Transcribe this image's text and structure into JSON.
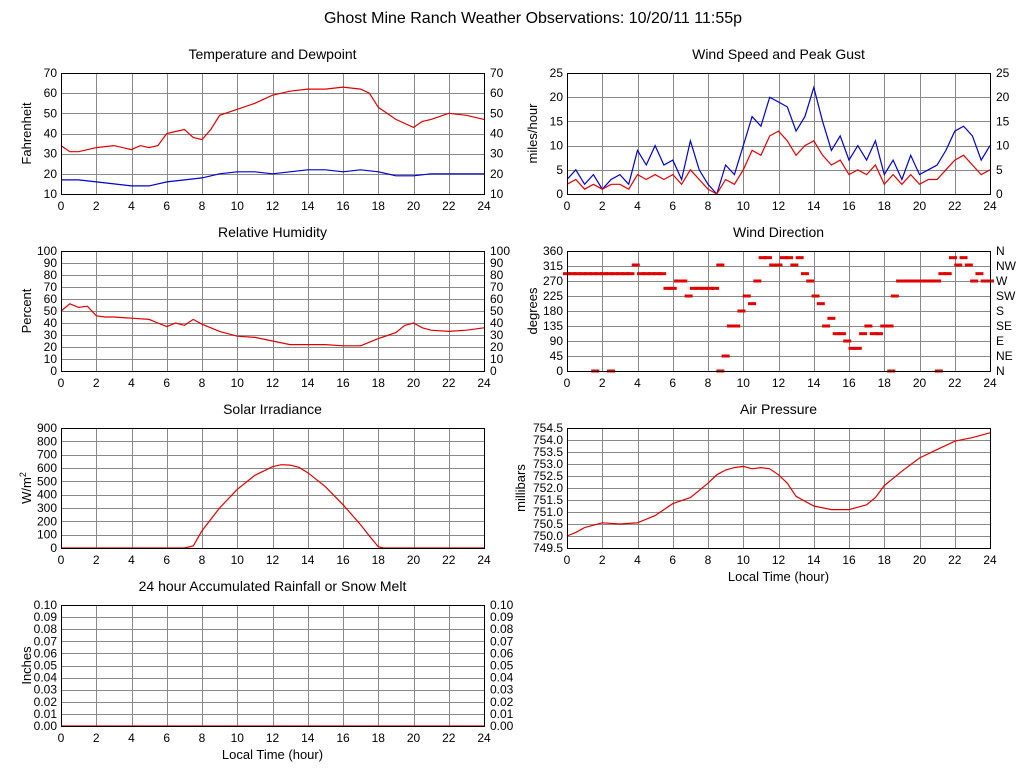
{
  "page": {
    "title": "Ghost Mine Ranch Weather Observations: 10/20/11 11:55p"
  },
  "colors": {
    "red": "#e00000",
    "blue": "#0000cc",
    "grid": "#888888"
  },
  "chart_data": [
    {
      "id": "temp",
      "type": "line",
      "title": "Temperature and Dewpoint",
      "ylabel": "Fahrenheit",
      "xlabel": "",
      "xlim": [
        0,
        24
      ],
      "ylim": [
        10,
        70
      ],
      "xticks": [
        0,
        2,
        4,
        6,
        8,
        10,
        12,
        14,
        16,
        18,
        20,
        22,
        24
      ],
      "yticks": [
        10,
        20,
        30,
        40,
        50,
        60,
        70
      ],
      "right_ticks": [
        "10",
        "20",
        "30",
        "40",
        "50",
        "60",
        "70"
      ],
      "grid": true,
      "series": [
        {
          "color": "#e00000",
          "x": [
            0,
            0.5,
            1,
            2,
            3,
            4,
            4.5,
            5,
            5.5,
            6,
            6.5,
            7,
            7.5,
            8,
            8.5,
            9,
            10,
            11,
            12,
            13,
            14,
            15,
            16,
            17,
            17.5,
            18,
            19,
            20,
            20.5,
            21,
            22,
            23,
            24
          ],
          "y": [
            34,
            31,
            31,
            33,
            34,
            32,
            34,
            33,
            34,
            40,
            41,
            42,
            38,
            37,
            42,
            49,
            52,
            55,
            59,
            61,
            62,
            62,
            63,
            62,
            60,
            53,
            47,
            43,
            46,
            47,
            50,
            49,
            47
          ]
        },
        {
          "color": "#0000cc",
          "x": [
            0,
            1,
            2,
            3,
            4,
            5,
            6,
            7,
            8,
            9,
            10,
            11,
            12,
            13,
            14,
            15,
            16,
            17,
            18,
            19,
            20,
            21,
            22,
            23,
            24
          ],
          "y": [
            17,
            17,
            16,
            15,
            14,
            14,
            16,
            17,
            18,
            20,
            21,
            21,
            20,
            21,
            22,
            22,
            21,
            22,
            21,
            19,
            19,
            20,
            20,
            20,
            20
          ]
        }
      ]
    },
    {
      "id": "wind",
      "type": "line",
      "title": "Wind Speed and Peak Gust",
      "ylabel": "miles/hour",
      "xlabel": "",
      "xlim": [
        0,
        24
      ],
      "ylim": [
        0,
        25
      ],
      "xticks": [
        0,
        2,
        4,
        6,
        8,
        10,
        12,
        14,
        16,
        18,
        20,
        22,
        24
      ],
      "yticks": [
        0,
        5,
        10,
        15,
        20,
        25
      ],
      "right_ticks": [
        "0",
        "5",
        "10",
        "15",
        "20",
        "25"
      ],
      "grid": true,
      "series": [
        {
          "color": "#0000cc",
          "x": [
            0,
            0.5,
            1,
            1.5,
            2,
            2.5,
            3,
            3.5,
            4,
            4.5,
            5,
            5.5,
            6,
            6.5,
            7,
            7.5,
            8,
            8.5,
            9,
            9.5,
            10,
            10.5,
            11,
            11.5,
            12,
            12.5,
            13,
            13.5,
            14,
            14.5,
            15,
            15.5,
            16,
            16.5,
            17,
            17.5,
            18,
            18.5,
            19,
            19.5,
            20,
            20.5,
            21,
            21.5,
            22,
            22.5,
            23,
            23.5,
            24
          ],
          "y": [
            3,
            5,
            2,
            4,
            1,
            3,
            4,
            2,
            9,
            6,
            10,
            6,
            7,
            3,
            11,
            5,
            2,
            0,
            6,
            4,
            10,
            16,
            14,
            20,
            19,
            18,
            13,
            16,
            22,
            15,
            9,
            12,
            7,
            10,
            7,
            11,
            4,
            7,
            3,
            8,
            4,
            5,
            6,
            9,
            13,
            14,
            12,
            7,
            10
          ]
        },
        {
          "color": "#e00000",
          "x": [
            0,
            0.5,
            1,
            1.5,
            2,
            2.5,
            3,
            3.5,
            4,
            4.5,
            5,
            5.5,
            6,
            6.5,
            7,
            7.5,
            8,
            8.5,
            9,
            9.5,
            10,
            10.5,
            11,
            11.5,
            12,
            12.5,
            13,
            13.5,
            14,
            14.5,
            15,
            15.5,
            16,
            16.5,
            17,
            17.5,
            18,
            18.5,
            19,
            19.5,
            20,
            20.5,
            21,
            21.5,
            22,
            22.5,
            23,
            23.5,
            24
          ],
          "y": [
            2,
            3,
            1,
            2,
            1,
            2,
            2,
            1,
            4,
            3,
            4,
            3,
            4,
            2,
            5,
            3,
            1,
            0,
            3,
            2,
            5,
            9,
            8,
            12,
            13,
            11,
            8,
            10,
            11,
            8,
            6,
            7,
            4,
            5,
            4,
            6,
            2,
            4,
            2,
            4,
            2,
            3,
            3,
            5,
            7,
            8,
            6,
            4,
            5
          ]
        }
      ]
    },
    {
      "id": "humidity",
      "type": "line",
      "title": "Relative Humidity",
      "ylabel": "Percent",
      "xlabel": "",
      "xlim": [
        0,
        24
      ],
      "ylim": [
        0,
        100
      ],
      "xticks": [
        0,
        2,
        4,
        6,
        8,
        10,
        12,
        14,
        16,
        18,
        20,
        22,
        24
      ],
      "yticks": [
        0,
        10,
        20,
        30,
        40,
        50,
        60,
        70,
        80,
        90,
        100
      ],
      "right_ticks": [
        "0",
        "10",
        "20",
        "30",
        "40",
        "50",
        "60",
        "70",
        "80",
        "90",
        "100"
      ],
      "grid": true,
      "series": [
        {
          "color": "#e00000",
          "x": [
            0,
            0.5,
            1,
            1.5,
            2,
            2.5,
            3,
            4,
            5,
            5.5,
            6,
            6.5,
            7,
            7.5,
            8,
            9,
            10,
            11,
            12,
            13,
            14,
            15,
            16,
            17,
            18,
            19,
            19.5,
            20,
            20.5,
            21,
            22,
            23,
            24
          ],
          "y": [
            50,
            56,
            53,
            54,
            46,
            45,
            45,
            44,
            43,
            40,
            37,
            40,
            38,
            43,
            39,
            33,
            29,
            28,
            25,
            22,
            22,
            22,
            21,
            21,
            27,
            32,
            38,
            40,
            36,
            34,
            33,
            34,
            36
          ]
        }
      ]
    },
    {
      "id": "direction",
      "type": "scatter",
      "title": "Wind Direction",
      "ylabel": "degrees",
      "xlabel": "",
      "xlim": [
        0,
        24
      ],
      "ylim": [
        0,
        360
      ],
      "xticks": [
        0,
        2,
        4,
        6,
        8,
        10,
        12,
        14,
        16,
        18,
        20,
        22,
        24
      ],
      "yticks": [
        0,
        45,
        90,
        135,
        180,
        225,
        270,
        315,
        360
      ],
      "right_ticks": [
        "N",
        "NE",
        "E",
        "SE",
        "S",
        "SW",
        "W",
        "NW",
        "N"
      ],
      "grid": true,
      "series": [
        {
          "color": "#e00000",
          "x": [
            0,
            0.3,
            0.6,
            0.9,
            1.2,
            1.5,
            1.8,
            2.1,
            2.4,
            2.7,
            3.0,
            3.3,
            3.6,
            3.9,
            4.2,
            4.5,
            4.8,
            5.1,
            5.4,
            5.7,
            6.0,
            6.3,
            6.6,
            6.9,
            7.2,
            7.5,
            7.8,
            8.1,
            8.4,
            8.7,
            9.0,
            9.3,
            9.6,
            9.9,
            10.2,
            10.5,
            10.8,
            11.1,
            11.4,
            11.7,
            12.0,
            12.3,
            12.6,
            12.9,
            13.2,
            13.5,
            13.8,
            14.1,
            14.4,
            14.7,
            15.0,
            15.3,
            15.6,
            15.9,
            16.2,
            16.5,
            16.8,
            17.1,
            17.4,
            17.7,
            18.0,
            18.3,
            18.6,
            18.9,
            19.2,
            19.5,
            19.8,
            20.1,
            20.4,
            20.7,
            21.0,
            21.3,
            21.6,
            21.9,
            22.2,
            22.5,
            22.8,
            23.1,
            23.4,
            23.7,
            24.0,
            1.6,
            2.5,
            8.7,
            18.4,
            21.1
          ],
          "y": [
            292,
            292,
            292,
            292,
            292,
            292,
            292,
            292,
            292,
            292,
            292,
            292,
            292,
            318,
            292,
            292,
            292,
            292,
            292,
            248,
            248,
            270,
            270,
            225,
            248,
            248,
            248,
            248,
            248,
            318,
            45,
            135,
            135,
            180,
            225,
            202,
            270,
            340,
            340,
            318,
            318,
            340,
            340,
            318,
            340,
            292,
            270,
            225,
            202,
            135,
            158,
            112,
            112,
            90,
            68,
            68,
            112,
            135,
            112,
            112,
            135,
            135,
            225,
            270,
            270,
            270,
            270,
            270,
            270,
            270,
            270,
            292,
            292,
            340,
            318,
            340,
            318,
            270,
            292,
            270,
            270,
            0,
            0,
            0,
            0,
            0
          ]
        }
      ]
    },
    {
      "id": "solar",
      "type": "line",
      "title": "Solar Irradiance",
      "ylabel": "W/m2",
      "xlabel": "",
      "xlim": [
        0,
        24
      ],
      "ylim": [
        0,
        900
      ],
      "xticks": [
        0,
        2,
        4,
        6,
        8,
        10,
        12,
        14,
        16,
        18,
        20,
        22,
        24
      ],
      "yticks": [
        0,
        100,
        200,
        300,
        400,
        500,
        600,
        700,
        800,
        900
      ],
      "right_ticks": [],
      "grid": true,
      "series": [
        {
          "color": "#e00000",
          "x": [
            0,
            7,
            7.5,
            8,
            9,
            10,
            11,
            12,
            12.5,
            13,
            13.5,
            14,
            15,
            16,
            17,
            17.5,
            18,
            18.3,
            24
          ],
          "y": [
            0,
            0,
            15,
            130,
            300,
            440,
            545,
            610,
            625,
            622,
            605,
            565,
            460,
            325,
            175,
            90,
            10,
            0,
            0
          ]
        }
      ]
    },
    {
      "id": "pressure",
      "type": "line",
      "title": "Air Pressure",
      "ylabel": "millibars",
      "xlabel": "Local Time (hour)",
      "xlim": [
        0,
        24
      ],
      "ylim": [
        749.5,
        754.5
      ],
      "xticks": [
        0,
        2,
        4,
        6,
        8,
        10,
        12,
        14,
        16,
        18,
        20,
        22,
        24
      ],
      "yticks": [
        749.5,
        750.0,
        750.5,
        751.0,
        751.5,
        752.0,
        752.5,
        753.0,
        753.5,
        754.0,
        754.5
      ],
      "ytick_labels": [
        "749.5",
        "750.0",
        "750.5",
        "751.0",
        "751.5",
        "752.0",
        "752.5",
        "753.0",
        "753.5",
        "754.0",
        "754.5"
      ],
      "right_ticks": [],
      "grid": true,
      "series": [
        {
          "color": "#e00000",
          "x": [
            0,
            0.5,
            1,
            2,
            3,
            4,
            5,
            6,
            7,
            8,
            8.5,
            9,
            9.5,
            10,
            10.5,
            11,
            11.5,
            12,
            12.5,
            13,
            14,
            15,
            15.5,
            16,
            16.5,
            17,
            17.5,
            18,
            19,
            20,
            21,
            22,
            23,
            24
          ],
          "y": [
            750.0,
            750.15,
            750.35,
            750.55,
            750.5,
            750.55,
            750.85,
            751.35,
            751.6,
            752.2,
            752.55,
            752.75,
            752.85,
            752.9,
            752.8,
            752.85,
            752.8,
            752.55,
            752.2,
            751.65,
            751.25,
            751.1,
            751.1,
            751.1,
            751.2,
            751.3,
            751.6,
            752.1,
            752.7,
            753.25,
            753.6,
            753.95,
            754.1,
            754.3
          ]
        }
      ]
    },
    {
      "id": "rain",
      "type": "line",
      "title": "24 hour Accumulated Rainfall or Snow Melt",
      "ylabel": "Inches",
      "xlabel": "Local Time (hour)",
      "xlim": [
        0,
        24
      ],
      "ylim": [
        0,
        0.1
      ],
      "xticks": [
        0,
        2,
        4,
        6,
        8,
        10,
        12,
        14,
        16,
        18,
        20,
        22,
        24
      ],
      "yticks": [
        0,
        0.01,
        0.02,
        0.03,
        0.04,
        0.05,
        0.06,
        0.07,
        0.08,
        0.09,
        0.1
      ],
      "ytick_labels": [
        "0.00",
        "0.01",
        "0.02",
        "0.03",
        "0.04",
        "0.05",
        "0.06",
        "0.07",
        "0.08",
        "0.09",
        "0.10"
      ],
      "right_ticks": [
        "0.00",
        "0.01",
        "0.02",
        "0.03",
        "0.04",
        "0.05",
        "0.06",
        "0.07",
        "0.08",
        "0.09",
        "0.10"
      ],
      "grid": true,
      "series": [
        {
          "color": "#e00000",
          "x": [
            0,
            24
          ],
          "y": [
            0,
            0
          ]
        }
      ]
    }
  ]
}
